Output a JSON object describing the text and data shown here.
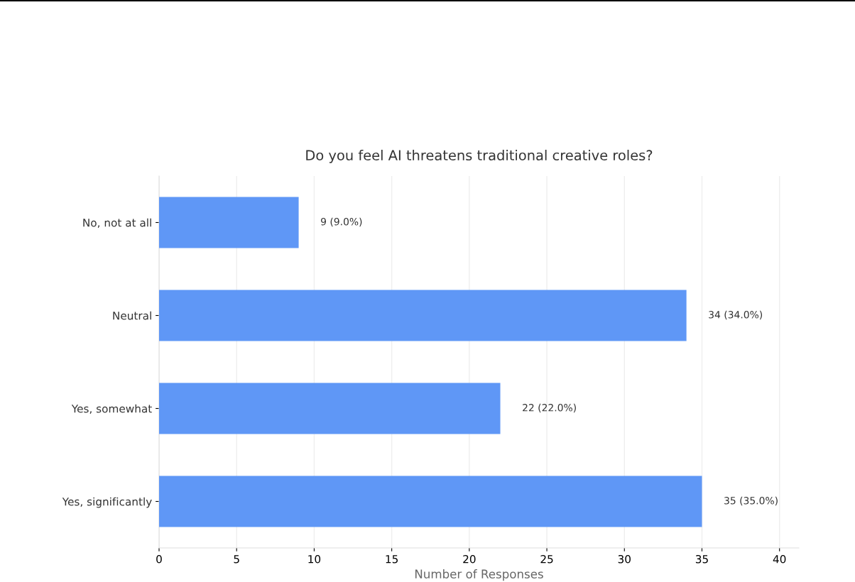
{
  "chart_data": {
    "type": "bar",
    "orientation": "horizontal",
    "title": "Do you feel AI threatens traditional creative roles?",
    "xlabel": "Number of Responses",
    "categories": [
      "No, not at all",
      "Neutral",
      "Yes, somewhat",
      "Yes, significantly"
    ],
    "values": [
      9,
      34,
      22,
      35
    ],
    "color": "#5f97f6",
    "value_labels": [
      "9 (9.0%)",
      "34 (34.0%)",
      "22 (22.0%)",
      "35 (35.0%)"
    ],
    "xlim": [
      0,
      41.25
    ],
    "xticks": [
      0,
      5,
      10,
      15,
      20,
      25,
      30,
      35,
      40
    ],
    "grid": "x"
  }
}
